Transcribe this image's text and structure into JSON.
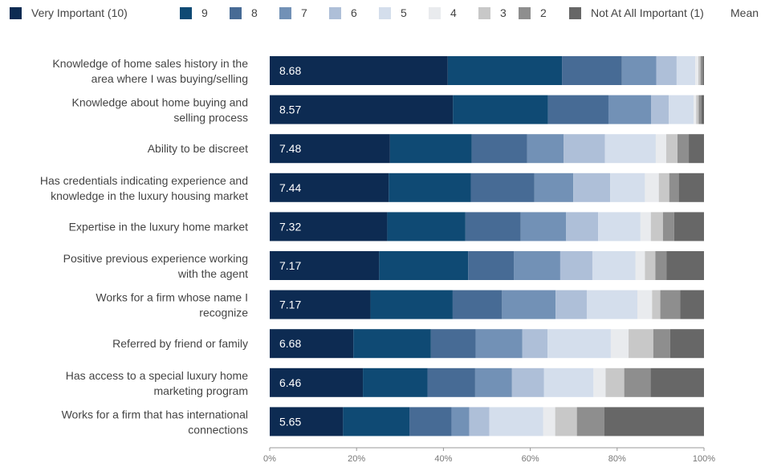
{
  "chart_data": {
    "type": "bar",
    "orientation": "horizontal",
    "stacked": true,
    "legend_position": "top",
    "legend": [
      {
        "label": "Very Important (10)",
        "color": "#0d2b52"
      },
      {
        "label": "9",
        "color": "#0f4a74"
      },
      {
        "label": "8",
        "color": "#476b95"
      },
      {
        "label": "7",
        "color": "#7291b6"
      },
      {
        "label": "6",
        "color": "#aebfd8"
      },
      {
        "label": "5",
        "color": "#d4deec"
      },
      {
        "label": "4",
        "color": "#e9ebee"
      },
      {
        "label": "3",
        "color": "#c8c8c8"
      },
      {
        "label": "2",
        "color": "#8e8e8e"
      },
      {
        "label": "Not At All Important (1)",
        "color": "#676767"
      },
      {
        "label": "Mean",
        "color": ""
      }
    ],
    "categories": [
      [
        "Knowledge of home sales history in the",
        "area where I was buying/selling"
      ],
      [
        "Knowledge about home buying and",
        "selling process"
      ],
      [
        "Ability to be discreet"
      ],
      [
        "Has credentials indicating experience and",
        "knowledge in the luxury housing market"
      ],
      [
        "Expertise in the luxury home market"
      ],
      [
        "Positive previous experience working",
        "with the agent"
      ],
      [
        "Works for a firm whose name I",
        "recognize"
      ],
      [
        "Referred by friend or family"
      ],
      [
        "Has access to a special luxury home",
        "marketing program"
      ],
      [
        "Works for a firm that has international",
        "connections"
      ]
    ],
    "means": [
      "8.68",
      "8.57",
      "7.48",
      "7.44",
      "7.32",
      "7.17",
      "7.17",
      "6.68",
      "6.46",
      "5.65"
    ],
    "values": [
      [
        41,
        26.3,
        13.8,
        7.9,
        4.7,
        4.3,
        0.7,
        0.5,
        0.5,
        0.3
      ],
      [
        42.2,
        21.9,
        13.9,
        9.8,
        4.1,
        5.7,
        0.6,
        0.6,
        0.6,
        0.6
      ],
      [
        27.7,
        18.8,
        12.8,
        8.4,
        9.5,
        11.7,
        2.4,
        2.6,
        2.6,
        3.5
      ],
      [
        27.4,
        18.9,
        14.6,
        9.0,
        8.5,
        8.0,
        3.2,
        2.4,
        2.2,
        5.8
      ],
      [
        27.2,
        18.1,
        12.8,
        10.5,
        7.4,
        9.8,
        2.4,
        2.8,
        2.6,
        6.9
      ],
      [
        25.2,
        20.5,
        10.5,
        10.7,
        7.4,
        9.9,
        2.2,
        2.4,
        2.6,
        8.6
      ],
      [
        23.3,
        19.0,
        11.4,
        12.4,
        7.2,
        11.7,
        3.4,
        1.9,
        4.6,
        5.5
      ],
      [
        19.3,
        17.9,
        10.3,
        10.8,
        5.8,
        14.6,
        4.1,
        5.7,
        3.9,
        7.8
      ],
      [
        21.5,
        14.9,
        11.0,
        8.5,
        7.4,
        11.4,
        2.8,
        4.3,
        6.1,
        12.3
      ],
      [
        16.9,
        15.3,
        9.7,
        4.1,
        4.6,
        12.4,
        2.8,
        5.0,
        6.3,
        23.0
      ]
    ],
    "xlim": [
      0,
      100
    ],
    "x_ticks": [
      "0%",
      "20%",
      "40%",
      "60%",
      "80%",
      "100%"
    ],
    "grid": false
  }
}
